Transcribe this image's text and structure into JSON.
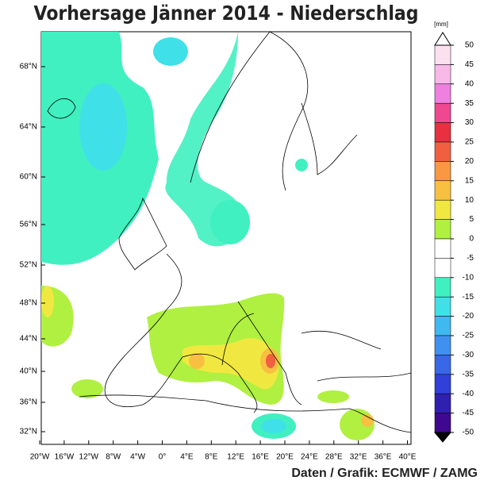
{
  "title": "Vorhersage Jänner 2014 - Niederschlag",
  "footer": "Daten / Grafik: ECMWF / ZAMG",
  "map": {
    "lat_labels": [
      "68°N",
      "64°N",
      "60°N",
      "56°N",
      "52°N",
      "48°N",
      "44°N",
      "40°N",
      "36°N",
      "32°N"
    ],
    "lon_labels": [
      "20°W",
      "16°W",
      "12°W",
      "8°W",
      "4°W",
      "0°",
      "4°E",
      "8°E",
      "12°E",
      "16°E",
      "20°E",
      "24°E",
      "28°E",
      "32°E",
      "36°E",
      "40°E"
    ]
  },
  "colorbar": {
    "unit": "[mm]",
    "ticks": [
      50,
      45,
      40,
      35,
      30,
      25,
      20,
      15,
      10,
      5,
      0,
      -5,
      -10,
      -15,
      -20,
      -25,
      -30,
      -35,
      -40,
      -45,
      -50
    ],
    "colors": [
      "#fde0f0",
      "#f8b8e8",
      "#f080e0",
      "#f04890",
      "#e83040",
      "#f06040",
      "#f89840",
      "#f8c040",
      "#f0e840",
      "#b0f040",
      "#ffffff",
      "#ffffff",
      "#40f0c0",
      "#40e0e8",
      "#40b8f0",
      "#4090f0",
      "#3868e8",
      "#3040d8",
      "#3020b0",
      "#400890"
    ]
  }
}
